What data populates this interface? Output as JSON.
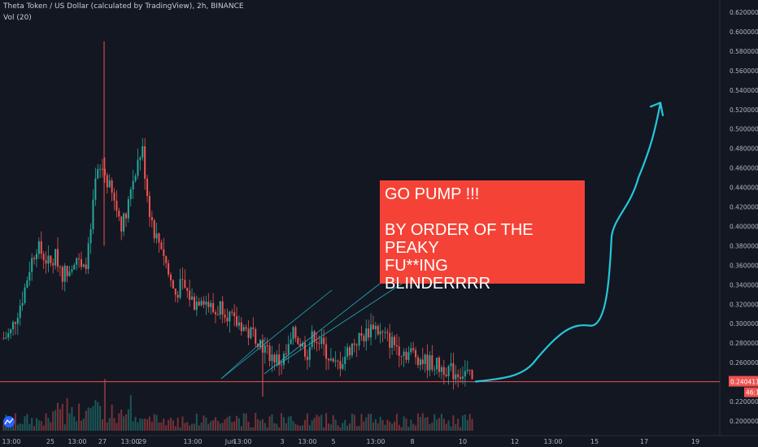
{
  "header": {
    "title": "Theta Token / US Dollar (calculated by TradingView), 2h, BINANCE",
    "volume_label": "Vol (20)"
  },
  "annotation": {
    "lines": [
      "GO PUMP !!!",
      "",
      "BY ORDER OF THE PEAKY",
      "FU**ING",
      "BLINDERRRR"
    ]
  },
  "price_axis": {
    "ticks": [
      "0.62000000",
      "0.60000000",
      "0.58000000",
      "0.56000000",
      "0.54000000",
      "0.52000000",
      "0.50000000",
      "0.48000000",
      "0.46000000",
      "0.44000000",
      "0.42000000",
      "0.40000000",
      "0.38000000",
      "0.36000000",
      "0.34000000",
      "0.32000000",
      "0.30000000",
      "0.28000000",
      "0.26000000",
      "0.24000000",
      "0.22000000",
      "0.20000000"
    ],
    "current_price": "0.24041123",
    "countdown": "46:17"
  },
  "time_axis": {
    "ticks": [
      "13:00",
      "25",
      "13:00",
      "27",
      "13:00",
      "29",
      "13:00",
      "Jun",
      "13:00",
      "3",
      "13:00",
      "5",
      "13:00",
      "8",
      "10",
      "12",
      "13:00",
      "15",
      "17",
      "19"
    ]
  },
  "colors": {
    "background": "#131722",
    "up": "#26a69a",
    "down": "#ef5350",
    "price_line": "#ef5350",
    "annotation_bg": "#f44336",
    "projection": "#26c6da",
    "channel": "#26c6da"
  },
  "icons": {
    "logo": "tradingview-logo-icon"
  },
  "chart_data": {
    "type": "candlestick",
    "symbol": "Theta Token / US Dollar (calculated by TradingView), 2h, BINANCE",
    "ylim": [
      0.195,
      0.63
    ],
    "grid": false,
    "series": [
      {
        "name": "Price",
        "close_samples": [
          0.285,
          0.29,
          0.31,
          0.33,
          0.36,
          0.38,
          0.37,
          0.36,
          0.37,
          0.35,
          0.36,
          0.37,
          0.35,
          0.38,
          0.45,
          0.46,
          0.44,
          0.42,
          0.4,
          0.43,
          0.46,
          0.48,
          0.42,
          0.39,
          0.38,
          0.35,
          0.33,
          0.34,
          0.33,
          0.32,
          0.33,
          0.32,
          0.31,
          0.32,
          0.31,
          0.3,
          0.3,
          0.29,
          0.29,
          0.28,
          0.27,
          0.265,
          0.26,
          0.27,
          0.29,
          0.28,
          0.27,
          0.29,
          0.28,
          0.27,
          0.255,
          0.26,
          0.27,
          0.28,
          0.285,
          0.29,
          0.3,
          0.29,
          0.285,
          0.28,
          0.275,
          0.27,
          0.27,
          0.265,
          0.26,
          0.26,
          0.255,
          0.255,
          0.25,
          0.25,
          0.25,
          0.24
        ]
      },
      {
        "name": "Vol (20)",
        "values": "shown as histogram"
      }
    ],
    "current_price": 0.24041123,
    "annotations": [
      {
        "type": "text",
        "text": "GO PUMP !!! BY ORDER OF THE PEAKY FU**ING BLINDERRRR"
      },
      {
        "type": "projection_curve",
        "from_price": 0.24,
        "to_price": 0.525
      }
    ]
  }
}
